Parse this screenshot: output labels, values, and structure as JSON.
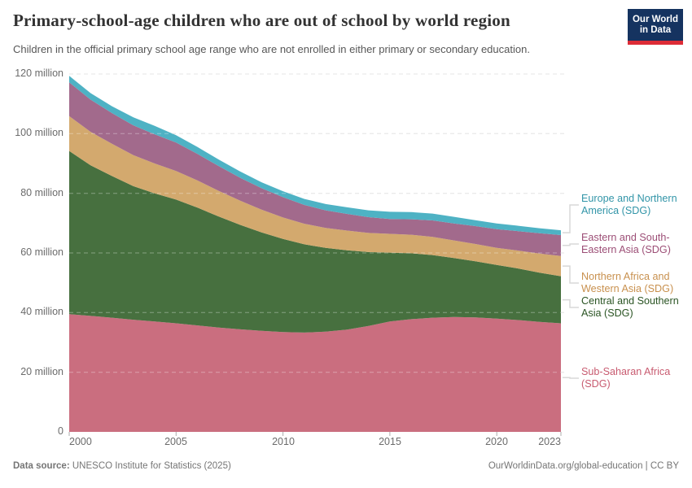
{
  "header": {
    "title": "Primary-school-age children who are out of school by world region",
    "subtitle": "Children in the official primary school age range who are not enrolled in either primary or secondary education.",
    "logo": {
      "line1": "Our World",
      "line2": "in Data",
      "bg": "#153360",
      "accent": "#dd2c37"
    }
  },
  "chart_data": {
    "type": "area",
    "stacked": true,
    "title": "Primary-school-age children who are out of school by world region",
    "xlabel": "",
    "ylabel": "",
    "unit": "million",
    "ylim": [
      0,
      120
    ],
    "grid": "dashed horizontal",
    "legend_position": "right",
    "x": [
      2000,
      2001,
      2002,
      2003,
      2004,
      2005,
      2006,
      2007,
      2008,
      2009,
      2010,
      2011,
      2012,
      2013,
      2014,
      2015,
      2016,
      2017,
      2018,
      2019,
      2020,
      2021,
      2022,
      2023
    ],
    "series": [
      {
        "name": "Sub-Saharan Africa (SDG)",
        "color": "#ca6e7f",
        "values": [
          39.5,
          38.9,
          38.3,
          37.6,
          37.0,
          36.4,
          35.7,
          35.0,
          34.4,
          33.9,
          33.5,
          33.3,
          33.6,
          34.3,
          35.5,
          37.0,
          37.8,
          38.3,
          38.5,
          38.4,
          38.0,
          37.5,
          36.9,
          36.4
        ]
      },
      {
        "name": "Central and Southern Asia (SDG)",
        "color": "#47703f",
        "values": [
          54.7,
          50.5,
          47.5,
          44.8,
          43.0,
          41.5,
          39.5,
          37.2,
          35.0,
          33.0,
          31.2,
          29.6,
          28.1,
          26.6,
          24.8,
          23.1,
          22.1,
          21.0,
          19.8,
          18.8,
          18.0,
          17.3,
          16.5,
          15.8
        ]
      },
      {
        "name": "Northern Africa and Western Asia (SDG)",
        "color": "#d3a96e",
        "values": [
          11.7,
          11.2,
          10.8,
          10.4,
          10.0,
          9.6,
          9.1,
          8.6,
          8.1,
          7.6,
          7.2,
          6.9,
          6.7,
          6.6,
          6.4,
          6.3,
          6.2,
          6.1,
          5.9,
          5.8,
          5.7,
          6.0,
          6.4,
          6.8
        ]
      },
      {
        "name": "Eastern and South-Eastern Asia (SDG)",
        "color": "#a26a8c",
        "values": [
          11.3,
          10.8,
          10.3,
          10.0,
          9.8,
          9.5,
          8.9,
          8.3,
          7.7,
          7.2,
          6.8,
          6.3,
          5.9,
          5.6,
          5.3,
          5.0,
          5.2,
          5.5,
          5.7,
          6.0,
          6.3,
          6.5,
          6.8,
          7.0
        ]
      },
      {
        "name": "Europe and Northern America (SDG)",
        "color": "#4eb2c4",
        "values": [
          2.2,
          2.2,
          2.3,
          2.7,
          2.8,
          2.5,
          2.3,
          2.2,
          2.1,
          2.0,
          2.0,
          2.0,
          2.1,
          2.2,
          2.3,
          2.4,
          2.4,
          2.3,
          2.2,
          2.0,
          1.9,
          1.8,
          1.7,
          1.6
        ]
      }
    ],
    "legend": [
      {
        "label": "Europe and Northern America (SDG)",
        "color": "#3295a8",
        "series_index": 4
      },
      {
        "label": "Eastern and South-Eastern Asia (SDG)",
        "color": "#9c4e76",
        "series_index": 3
      },
      {
        "label": "Northern Africa and Western Asia (SDG)",
        "color": "#c8904e",
        "series_index": 2
      },
      {
        "label": "Central and Southern Asia (SDG)",
        "color": "#2a5423",
        "series_index": 1
      },
      {
        "label": "Sub-Saharan Africa (SDG)",
        "color": "#c85b70",
        "series_index": 0
      }
    ],
    "ytick_values": [
      0,
      20,
      40,
      60,
      80,
      100,
      120
    ],
    "ytick_labels": [
      "0",
      "20 million",
      "40 million",
      "60 million",
      "80 million",
      "100 million",
      "120 million"
    ],
    "xtick_values": [
      2000,
      2005,
      2010,
      2015,
      2020,
      2023
    ],
    "xtick_labels": [
      "2000",
      "2005",
      "2010",
      "2015",
      "2020",
      "2023"
    ]
  },
  "footer": {
    "source_label": "Data source:",
    "source_text": " UNESCO Institute for Statistics (2025)",
    "credit": "OurWorldinData.org/global-education | CC BY"
  }
}
